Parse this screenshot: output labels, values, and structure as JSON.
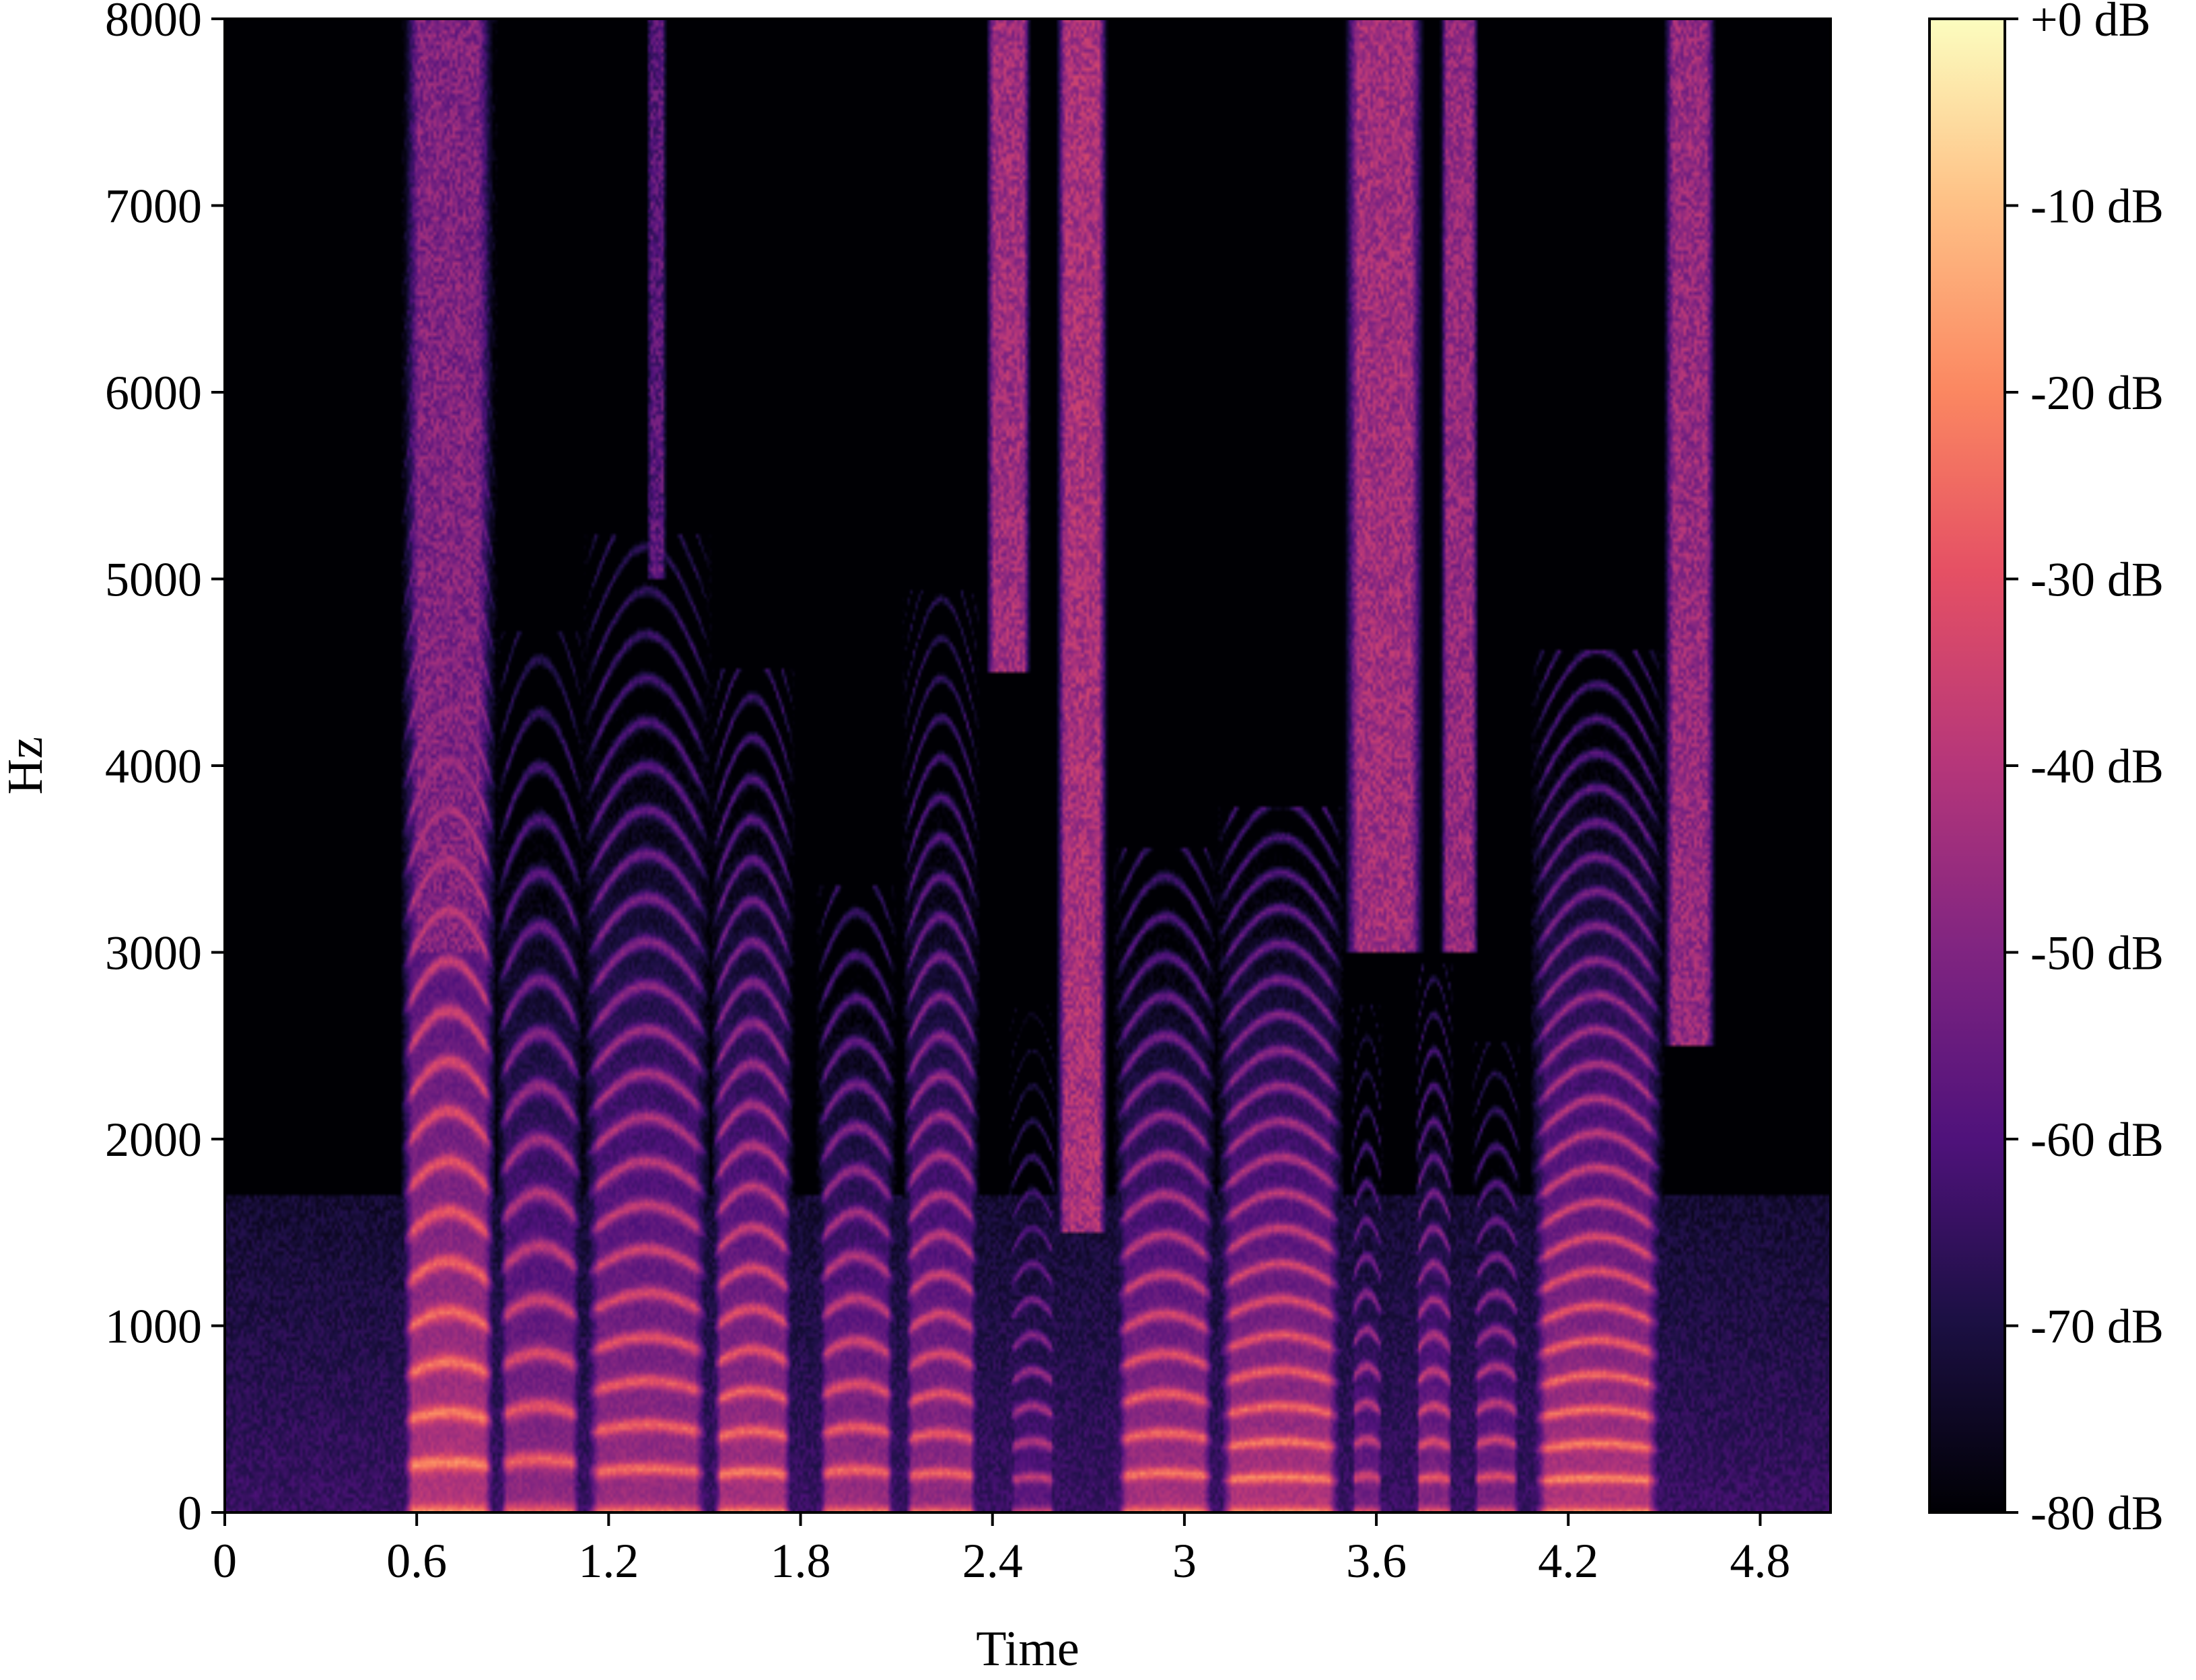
{
  "chart_data": {
    "type": "heatmap",
    "title": "",
    "xlabel": "Time",
    "ylabel": "Hz",
    "xlim": [
      0,
      5.02
    ],
    "ylim": [
      0,
      8000
    ],
    "x_ticks": [
      {
        "value": 0,
        "label": "0"
      },
      {
        "value": 0.6,
        "label": "0.6"
      },
      {
        "value": 1.2,
        "label": "1.2"
      },
      {
        "value": 1.8,
        "label": "1.8"
      },
      {
        "value": 2.4,
        "label": "2.4"
      },
      {
        "value": 3.0,
        "label": "3"
      },
      {
        "value": 3.6,
        "label": "3.6"
      },
      {
        "value": 4.2,
        "label": "4.2"
      },
      {
        "value": 4.8,
        "label": "4.8"
      }
    ],
    "y_ticks": [
      {
        "value": 0,
        "label": "0"
      },
      {
        "value": 1000,
        "label": "1000"
      },
      {
        "value": 2000,
        "label": "2000"
      },
      {
        "value": 3000,
        "label": "3000"
      },
      {
        "value": 4000,
        "label": "4000"
      },
      {
        "value": 5000,
        "label": "5000"
      },
      {
        "value": 6000,
        "label": "6000"
      },
      {
        "value": 7000,
        "label": "7000"
      },
      {
        "value": 8000,
        "label": "8000"
      }
    ],
    "colorbar": {
      "colormap": "magma",
      "range_db": [
        -80,
        0
      ],
      "ticks": [
        {
          "value": 0,
          "label": "+0 dB"
        },
        {
          "value": -10,
          "label": "-10 dB"
        },
        {
          "value": -20,
          "label": "-20 dB"
        },
        {
          "value": -30,
          "label": "-30 dB"
        },
        {
          "value": -40,
          "label": "-40 dB"
        },
        {
          "value": -50,
          "label": "-50 dB"
        },
        {
          "value": -60,
          "label": "-60 dB"
        },
        {
          "value": -70,
          "label": "-70 dB"
        },
        {
          "value": -80,
          "label": "-80 dB"
        }
      ]
    },
    "grid": false,
    "voiced_segments": [
      {
        "start": 0.55,
        "end": 0.85,
        "f0": 240,
        "level_db": -18,
        "top_hz": 7800
      },
      {
        "start": 0.85,
        "end": 1.12,
        "f0": 255,
        "level_db": -24,
        "top_hz": 4500
      },
      {
        "start": 1.12,
        "end": 1.52,
        "f0": 210,
        "level_db": -22,
        "top_hz": 5000
      },
      {
        "start": 1.52,
        "end": 1.78,
        "f0": 195,
        "level_db": -20,
        "top_hz": 4300
      },
      {
        "start": 1.85,
        "end": 2.1,
        "f0": 205,
        "level_db": -22,
        "top_hz": 3200
      },
      {
        "start": 2.12,
        "end": 2.36,
        "f0": 190,
        "level_db": -24,
        "top_hz": 4700
      },
      {
        "start": 2.45,
        "end": 2.6,
        "f0": 170,
        "level_db": -34,
        "top_hz": 2600
      },
      {
        "start": 2.78,
        "end": 3.1,
        "f0": 190,
        "level_db": -20,
        "top_hz": 3400
      },
      {
        "start": 3.1,
        "end": 3.5,
        "f0": 170,
        "level_db": -18,
        "top_hz": 3600
      },
      {
        "start": 3.52,
        "end": 3.62,
        "f0": 175,
        "level_db": -30,
        "top_hz": 2600
      },
      {
        "start": 3.72,
        "end": 3.84,
        "f0": 170,
        "level_db": -26,
        "top_hz": 2800
      },
      {
        "start": 3.9,
        "end": 4.05,
        "f0": 175,
        "level_db": -28,
        "top_hz": 2400
      },
      {
        "start": 4.08,
        "end": 4.5,
        "f0": 165,
        "level_db": -18,
        "top_hz": 4400
      }
    ],
    "fricative_segments": [
      {
        "start": 0.56,
        "end": 0.84,
        "low_hz": 3000,
        "high_hz": 8000,
        "level_db": -50
      },
      {
        "start": 1.32,
        "end": 1.38,
        "low_hz": 5000,
        "high_hz": 8000,
        "level_db": -58
      },
      {
        "start": 2.38,
        "end": 2.52,
        "low_hz": 4500,
        "high_hz": 8000,
        "level_db": -44
      },
      {
        "start": 2.6,
        "end": 2.76,
        "low_hz": 1500,
        "high_hz": 8000,
        "level_db": -42
      },
      {
        "start": 3.5,
        "end": 3.75,
        "low_hz": 3000,
        "high_hz": 8000,
        "level_db": -44
      },
      {
        "start": 3.8,
        "end": 3.92,
        "low_hz": 3000,
        "high_hz": 8000,
        "level_db": -46
      },
      {
        "start": 4.5,
        "end": 4.66,
        "low_hz": 2500,
        "high_hz": 8000,
        "level_db": -46
      }
    ]
  }
}
